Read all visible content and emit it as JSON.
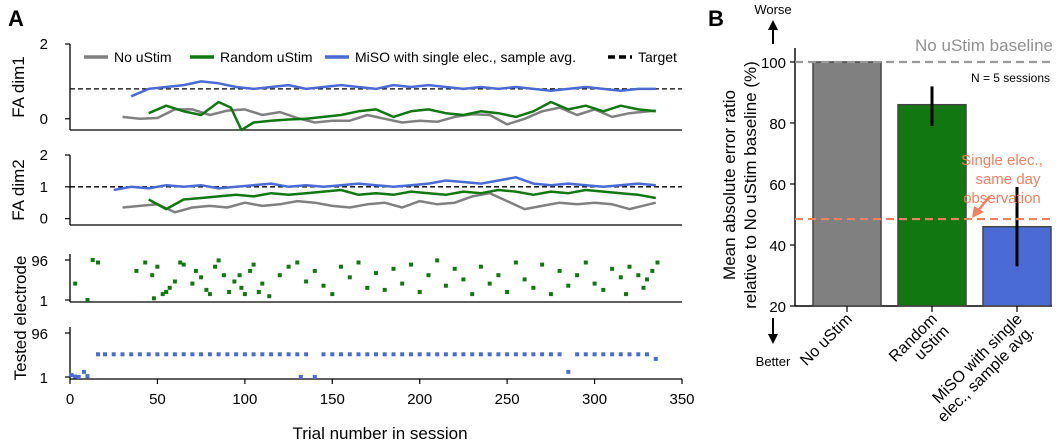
{
  "colors": {
    "no_ustim": "#808080",
    "random_ustim": "#117711",
    "miso": "#4a6bd4",
    "target": "#000000",
    "single_elec": "#f08060"
  },
  "panel_a": {
    "letter": "A",
    "legend": [
      "No uStim",
      "Random uStim",
      "MiSO with single elec., sample avg.",
      "Target"
    ],
    "x_axis": {
      "label": "Trial number in session",
      "ticks": [
        0,
        50,
        100,
        150,
        200,
        250,
        300,
        350
      ],
      "range": [
        0,
        350
      ]
    },
    "dim1": {
      "ylabel": "FA dim1",
      "yticks": [
        0,
        2
      ],
      "ylim": [
        -0.3,
        2.0
      ],
      "target": 0.8,
      "series": {
        "no_ustim": {
          "x": [
            30,
            40,
            50,
            60,
            70,
            80,
            90,
            100,
            110,
            120,
            130,
            140,
            150,
            160,
            170,
            180,
            190,
            200,
            210,
            220,
            230,
            240,
            250,
            260,
            270,
            280,
            290,
            300,
            310,
            320,
            335
          ],
          "y": [
            0.05,
            0.0,
            0.02,
            0.25,
            0.25,
            0.1,
            0.22,
            0.25,
            0.1,
            0.18,
            0.02,
            -0.1,
            -0.05,
            -0.05,
            0.1,
            0.0,
            -0.1,
            -0.05,
            -0.08,
            0.05,
            0.12,
            0.1,
            -0.15,
            0.0,
            0.2,
            0.3,
            0.1,
            0.25,
            0.05,
            0.15,
            0.22
          ]
        },
        "random_ustim": {
          "x": [
            45,
            55,
            65,
            75,
            85,
            92,
            98,
            105,
            115,
            125,
            135,
            145,
            155,
            165,
            175,
            185,
            195,
            205,
            215,
            225,
            235,
            245,
            255,
            265,
            275,
            285,
            295,
            305,
            315,
            325,
            335
          ],
          "y": [
            0.15,
            0.35,
            0.2,
            0.1,
            0.45,
            0.3,
            -0.3,
            -0.1,
            -0.05,
            -0.02,
            0.0,
            0.05,
            0.1,
            0.2,
            0.25,
            0.05,
            0.2,
            0.25,
            0.15,
            0.1,
            0.2,
            0.15,
            0.05,
            0.2,
            0.45,
            0.25,
            0.35,
            0.2,
            0.35,
            0.25,
            0.2
          ]
        },
        "miso": {
          "x": [
            35,
            45,
            55,
            65,
            75,
            85,
            95,
            105,
            115,
            125,
            135,
            145,
            155,
            165,
            175,
            185,
            195,
            205,
            215,
            225,
            235,
            245,
            255,
            265,
            275,
            285,
            295,
            305,
            315,
            325,
            335
          ],
          "y": [
            0.6,
            0.8,
            0.85,
            0.9,
            1.0,
            0.95,
            0.85,
            0.8,
            0.85,
            0.9,
            0.8,
            0.85,
            0.9,
            0.85,
            0.8,
            0.9,
            0.85,
            0.9,
            0.85,
            0.8,
            0.85,
            0.8,
            0.85,
            0.8,
            0.75,
            0.8,
            0.85,
            0.8,
            0.75,
            0.8,
            0.8
          ]
        }
      }
    },
    "dim2": {
      "ylabel": "FA dim2",
      "yticks": [
        0,
        1,
        2
      ],
      "ylim": [
        -0.2,
        2.0
      ],
      "target": 1.0,
      "series": {
        "no_ustim": {
          "x": [
            30,
            40,
            50,
            60,
            70,
            80,
            90,
            100,
            110,
            120,
            130,
            140,
            150,
            160,
            170,
            180,
            190,
            200,
            210,
            220,
            230,
            240,
            250,
            260,
            270,
            280,
            290,
            300,
            310,
            320,
            335
          ],
          "y": [
            0.35,
            0.4,
            0.45,
            0.2,
            0.35,
            0.4,
            0.35,
            0.5,
            0.4,
            0.45,
            0.55,
            0.5,
            0.4,
            0.35,
            0.45,
            0.5,
            0.35,
            0.55,
            0.45,
            0.5,
            0.7,
            0.8,
            0.55,
            0.3,
            0.4,
            0.5,
            0.45,
            0.5,
            0.45,
            0.3,
            0.5
          ]
        },
        "random_ustim": {
          "x": [
            45,
            55,
            65,
            75,
            85,
            95,
            105,
            115,
            125,
            135,
            145,
            155,
            165,
            175,
            185,
            195,
            205,
            215,
            225,
            235,
            245,
            255,
            265,
            275,
            285,
            295,
            305,
            315,
            325,
            335
          ],
          "y": [
            0.6,
            0.3,
            0.6,
            0.65,
            0.7,
            0.75,
            0.7,
            0.8,
            0.75,
            0.8,
            0.85,
            0.9,
            0.75,
            0.8,
            0.75,
            0.85,
            0.8,
            0.75,
            0.85,
            0.8,
            0.9,
            0.85,
            0.75,
            0.85,
            0.8,
            0.9,
            0.85,
            0.8,
            0.75,
            0.65
          ]
        },
        "miso": {
          "x": [
            25,
            35,
            45,
            55,
            65,
            75,
            85,
            95,
            105,
            115,
            125,
            135,
            145,
            155,
            165,
            175,
            185,
            195,
            205,
            215,
            225,
            235,
            245,
            255,
            265,
            275,
            285,
            295,
            305,
            315,
            325,
            335
          ],
          "y": [
            0.9,
            1.0,
            0.95,
            1.05,
            1.0,
            1.05,
            0.95,
            1.0,
            1.05,
            1.1,
            1.0,
            1.05,
            1.0,
            1.05,
            1.1,
            1.05,
            1.0,
            1.05,
            1.1,
            1.2,
            1.15,
            1.1,
            1.2,
            1.3,
            1.1,
            1.05,
            1.1,
            1.05,
            1.0,
            1.05,
            1.1,
            1.05
          ]
        }
      }
    },
    "electrode_label": "Tested electrode",
    "electrode_yticks": [
      1,
      96
    ],
    "random_electrodes": {
      "x": [
        3,
        10,
        13,
        16,
        38,
        43,
        47,
        48,
        50,
        53,
        55,
        57,
        60,
        63,
        65,
        70,
        72,
        75,
        78,
        80,
        83,
        85,
        88,
        91,
        94,
        97,
        98,
        100,
        103,
        105,
        108,
        110,
        114,
        120,
        125,
        130,
        135,
        140,
        145,
        150,
        155,
        160,
        165,
        170,
        175,
        180,
        185,
        190,
        195,
        200,
        205,
        210,
        215,
        220,
        225,
        230,
        235,
        240,
        245,
        250,
        255,
        260,
        265,
        270,
        275,
        280,
        285,
        290,
        295,
        300,
        305,
        310,
        315,
        318,
        320,
        325,
        328,
        330,
        333,
        336
      ],
      "y": [
        40,
        1,
        96,
        90,
        70,
        90,
        60,
        5,
        80,
        15,
        20,
        30,
        45,
        90,
        85,
        40,
        70,
        55,
        25,
        15,
        80,
        95,
        60,
        20,
        45,
        60,
        30,
        15,
        70,
        85,
        20,
        40,
        10,
        60,
        80,
        90,
        45,
        70,
        35,
        15,
        80,
        55,
        90,
        30,
        65,
        25,
        75,
        40,
        85,
        20,
        60,
        95,
        35,
        75,
        50,
        15,
        80,
        40,
        60,
        20,
        90,
        50,
        30,
        85,
        15,
        70,
        35,
        60,
        90,
        40,
        25,
        75,
        55,
        15,
        80,
        60,
        30,
        50,
        70,
        90
      ]
    },
    "miso_electrodes": {
      "x": [
        1,
        3,
        5,
        8,
        10,
        16,
        20,
        25,
        30,
        35,
        40,
        45,
        50,
        55,
        60,
        65,
        70,
        75,
        80,
        85,
        90,
        95,
        100,
        105,
        110,
        115,
        120,
        125,
        130,
        132,
        135,
        140,
        145,
        150,
        155,
        160,
        165,
        170,
        175,
        180,
        185,
        190,
        195,
        200,
        205,
        210,
        215,
        220,
        225,
        230,
        235,
        240,
        245,
        250,
        255,
        260,
        265,
        270,
        275,
        280,
        285,
        290,
        295,
        300,
        305,
        310,
        315,
        320,
        325,
        330,
        335
      ],
      "y": [
        5,
        2,
        1,
        12,
        3,
        50,
        50,
        50,
        50,
        50,
        50,
        50,
        50,
        50,
        50,
        50,
        50,
        50,
        50,
        50,
        50,
        50,
        50,
        50,
        50,
        50,
        50,
        50,
        50,
        1,
        50,
        1,
        50,
        50,
        50,
        50,
        50,
        50,
        50,
        50,
        50,
        50,
        50,
        50,
        50,
        50,
        50,
        50,
        50,
        50,
        50,
        50,
        50,
        50,
        50,
        50,
        50,
        50,
        50,
        50,
        12,
        50,
        50,
        50,
        50,
        50,
        50,
        50,
        50,
        50,
        40
      ]
    }
  },
  "panel_b": {
    "letter": "B",
    "worse_label": "Worse",
    "better_label": "Better",
    "baseline_label": "No uStim baseline",
    "n_label": "N = 5 sessions",
    "annotation": [
      "Single elec.,",
      "same day",
      "observation"
    ],
    "ylabel_lines": [
      "Mean absolute error ratio",
      "relative to No uStim baseline (%)"
    ]
  },
  "chart_data": {
    "type": "bar",
    "categories": [
      [
        "No uStim"
      ],
      [
        "Random",
        "uStim"
      ],
      [
        "MiSO with single",
        "elec., sample avg."
      ]
    ],
    "values": [
      100,
      86,
      46
    ],
    "errors": [
      [
        100,
        100
      ],
      [
        79,
        92
      ],
      [
        33,
        59
      ]
    ],
    "ylim": [
      20,
      100
    ],
    "yticks": [
      20,
      40,
      60,
      80,
      100
    ],
    "baseline": 100,
    "single_elec_line": 48.5
  }
}
